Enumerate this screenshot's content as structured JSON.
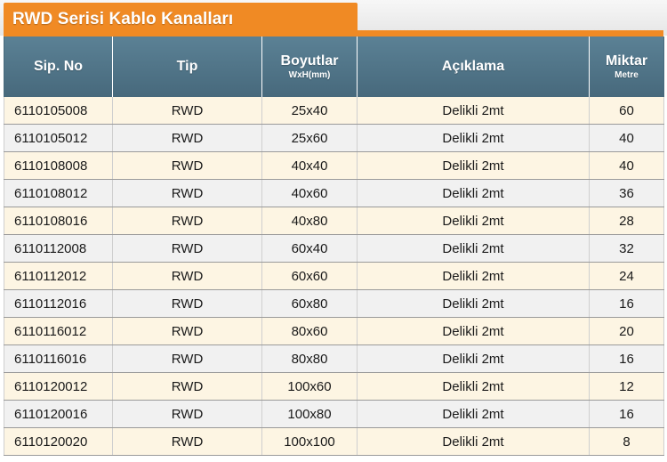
{
  "title": "RWD Serisi Kablo Kanalları",
  "headers": {
    "sip_no": "Sip. No",
    "tip": "Tip",
    "boyutlar": "Boyutlar",
    "boyutlar_sub": "WxH(mm)",
    "aciklama": "Açıklama",
    "miktar": "Miktar",
    "miktar_sub": "Metre"
  },
  "rows": [
    {
      "sip_no": "6110105008",
      "tip": "RWD",
      "boyut": "25x40",
      "aciklama": "Delikli 2mt",
      "miktar": "60"
    },
    {
      "sip_no": "6110105012",
      "tip": "RWD",
      "boyut": "25x60",
      "aciklama": "Delikli 2mt",
      "miktar": "40"
    },
    {
      "sip_no": "6110108008",
      "tip": "RWD",
      "boyut": "40x40",
      "aciklama": "Delikli 2mt",
      "miktar": "40"
    },
    {
      "sip_no": "6110108012",
      "tip": "RWD",
      "boyut": "40x60",
      "aciklama": "Delikli 2mt",
      "miktar": "36"
    },
    {
      "sip_no": "6110108016",
      "tip": "RWD",
      "boyut": "40x80",
      "aciklama": "Delikli 2mt",
      "miktar": "28"
    },
    {
      "sip_no": "6110112008",
      "tip": "RWD",
      "boyut": "60x40",
      "aciklama": "Delikli 2mt",
      "miktar": "32"
    },
    {
      "sip_no": "6110112012",
      "tip": "RWD",
      "boyut": "60x60",
      "aciklama": "Delikli 2mt",
      "miktar": "24"
    },
    {
      "sip_no": "6110112016",
      "tip": "RWD",
      "boyut": "60x80",
      "aciklama": "Delikli 2mt",
      "miktar": "16"
    },
    {
      "sip_no": "6110116012",
      "tip": "RWD",
      "boyut": "80x60",
      "aciklama": "Delikli 2mt",
      "miktar": "20"
    },
    {
      "sip_no": "6110116016",
      "tip": "RWD",
      "boyut": "80x80",
      "aciklama": "Delikli 2mt",
      "miktar": "16"
    },
    {
      "sip_no": "6110120012",
      "tip": "RWD",
      "boyut": "100x60",
      "aciklama": "Delikli 2mt",
      "miktar": "12"
    },
    {
      "sip_no": "6110120016",
      "tip": "RWD",
      "boyut": "100x80",
      "aciklama": "Delikli 2mt",
      "miktar": "16"
    },
    {
      "sip_no": "6110120020",
      "tip": "RWD",
      "boyut": "100x100",
      "aciklama": "Delikli 2mt",
      "miktar": "8"
    }
  ],
  "colors": {
    "accent": "#f08a24",
    "header_bg": "#4f7488",
    "row_odd": "#fdf5e3",
    "row_even": "#f1f1f1"
  }
}
